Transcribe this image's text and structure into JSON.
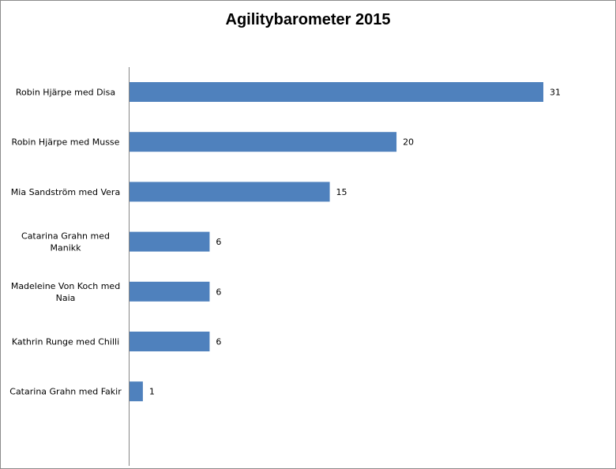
{
  "chart_data": {
    "type": "bar",
    "orientation": "horizontal",
    "title": "Agilitybarometer 2015",
    "xlabel": "",
    "ylabel": "",
    "xlim": [
      0,
      31
    ],
    "grid": false,
    "legend": "none",
    "data_labels": true,
    "categories": [
      [
        "Robin Hjärpe med Disa"
      ],
      [
        "Robin Hjärpe med Musse"
      ],
      [
        "Mia Sandström med Vera"
      ],
      [
        "Catarina Grahn med",
        "Manikk"
      ],
      [
        "Madeleine Von Koch med",
        "Naia"
      ],
      [
        "Kathrin Runge med Chilli"
      ],
      [
        "Catarina Grahn med Fakir"
      ]
    ],
    "values": [
      31,
      20,
      15,
      6,
      6,
      6,
      1
    ],
    "bar_color": "#4f81bd",
    "axis_color": "#868686"
  }
}
